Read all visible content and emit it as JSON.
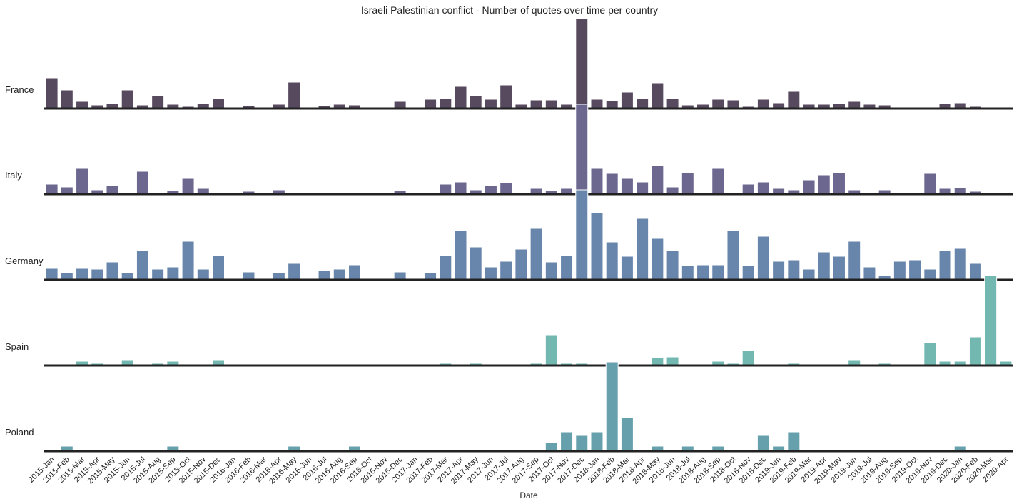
{
  "chart_data": {
    "type": "bar",
    "title": "Israeli Palestinian conflict - Number of quotes over time per country",
    "xlabel": "Date",
    "categories": [
      "2015-Jan",
      "2015-Feb",
      "2015-Mar",
      "2015-Apr",
      "2015-May",
      "2015-Jun",
      "2015-Jul",
      "2015-Aug",
      "2015-Sep",
      "2015-Oct",
      "2015-Nov",
      "2015-Dec",
      "2016-Jan",
      "2016-Feb",
      "2016-Mar",
      "2016-Apr",
      "2016-May",
      "2016-Jun",
      "2016-Jul",
      "2016-Aug",
      "2016-Sep",
      "2016-Oct",
      "2016-Nov",
      "2016-Dec",
      "2017-Jan",
      "2017-Feb",
      "2017-Mar",
      "2017-Apr",
      "2017-May",
      "2017-Jun",
      "2017-Jul",
      "2017-Aug",
      "2017-Sep",
      "2017-Oct",
      "2017-Nov",
      "2017-Dec",
      "2018-Jan",
      "2018-Feb",
      "2018-Mar",
      "2018-Apr",
      "2018-May",
      "2018-Jun",
      "2018-Jul",
      "2018-Aug",
      "2018-Sep",
      "2018-Oct",
      "2018-Nov",
      "2018-Dec",
      "2019-Jan",
      "2019-Feb",
      "2019-Mar",
      "2019-Apr",
      "2019-May",
      "2019-Jun",
      "2019-Jul",
      "2019-Aug",
      "2019-Sep",
      "2019-Oct",
      "2019-Nov",
      "2019-Dec",
      "2020-Jan",
      "2020-Feb",
      "2020-Mar",
      "2020-Apr"
    ],
    "series": [
      {
        "name": "France",
        "color": "#574a5e",
        "values": [
          43,
          26,
          10,
          5,
          7,
          26,
          5,
          18,
          6,
          3,
          7,
          14,
          0,
          4,
          0,
          6,
          37,
          0,
          4,
          6,
          5,
          0,
          0,
          10,
          0,
          13,
          14,
          31,
          18,
          13,
          33,
          6,
          12,
          12,
          6,
          126,
          13,
          11,
          23,
          14,
          36,
          14,
          5,
          6,
          13,
          12,
          3,
          13,
          8,
          24,
          6,
          6,
          7,
          10,
          6,
          5,
          0,
          2,
          0,
          7,
          8,
          3,
          0,
          0
        ]
      },
      {
        "name": "Italy",
        "color": "#6b678f",
        "values": [
          14,
          10,
          36,
          6,
          12,
          2,
          32,
          2,
          5,
          22,
          8,
          2,
          0,
          4,
          0,
          6,
          0,
          0,
          0,
          0,
          2,
          0,
          0,
          5,
          0,
          2,
          14,
          17,
          6,
          12,
          16,
          2,
          8,
          5,
          8,
          126,
          36,
          29,
          22,
          17,
          40,
          10,
          30,
          0,
          36,
          2,
          14,
          17,
          8,
          6,
          20,
          27,
          30,
          6,
          2,
          6,
          0,
          2,
          29,
          8,
          9,
          4,
          0,
          0
        ]
      },
      {
        "name": "Germany",
        "color": "#6886ac",
        "values": [
          16,
          10,
          16,
          15,
          25,
          10,
          41,
          15,
          18,
          54,
          15,
          34,
          0,
          11,
          0,
          10,
          23,
          0,
          13,
          15,
          21,
          1,
          0,
          11,
          0,
          10,
          34,
          69,
          46,
          18,
          26,
          43,
          72,
          25,
          34,
          126,
          94,
          53,
          33,
          86,
          58,
          41,
          20,
          21,
          21,
          69,
          20,
          61,
          26,
          28,
          15,
          39,
          33,
          54,
          18,
          6,
          26,
          28,
          15,
          41,
          44,
          23,
          0,
          0
        ]
      },
      {
        "name": "Spain",
        "color": "#72b8b0",
        "values": [
          0,
          0,
          6,
          3,
          0,
          8,
          0,
          3,
          6,
          0,
          0,
          8,
          0,
          0,
          0,
          0,
          0,
          0,
          0,
          0,
          0,
          0,
          0,
          0,
          0,
          0,
          3,
          0,
          3,
          0,
          0,
          0,
          3,
          43,
          3,
          3,
          0,
          0,
          0,
          0,
          11,
          12,
          0,
          0,
          6,
          3,
          21,
          0,
          0,
          3,
          0,
          0,
          0,
          8,
          0,
          3,
          0,
          0,
          32,
          6,
          6,
          40,
          126,
          6
        ]
      },
      {
        "name": "Poland",
        "color": "#66a0ad",
        "values": [
          0,
          7,
          0,
          2,
          0,
          2,
          2,
          0,
          7,
          2,
          2,
          0,
          0,
          0,
          0,
          0,
          7,
          0,
          2,
          0,
          7,
          0,
          0,
          2,
          0,
          2,
          2,
          2,
          0,
          2,
          2,
          2,
          2,
          12,
          27,
          22,
          27,
          125,
          47,
          2,
          7,
          2,
          7,
          0,
          7,
          2,
          2,
          22,
          7,
          27,
          0,
          0,
          0,
          2,
          2,
          0,
          2,
          2,
          2,
          2,
          7,
          0,
          0,
          0
        ]
      }
    ]
  }
}
